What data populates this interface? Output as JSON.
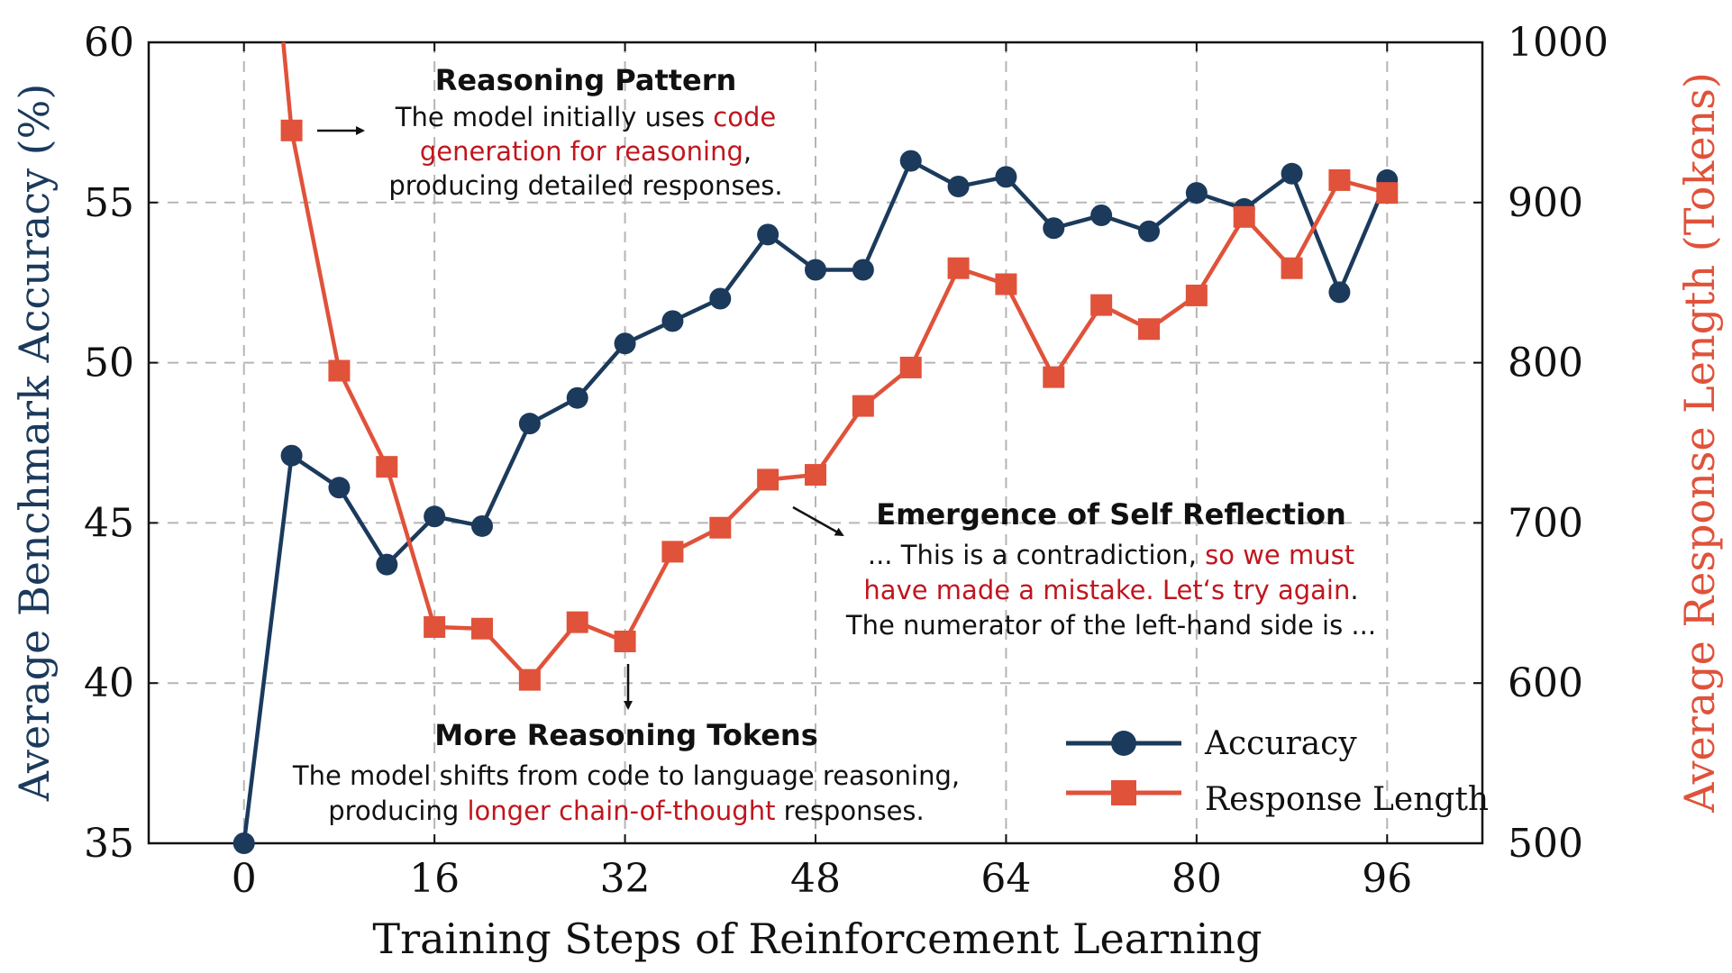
{
  "chart_data": {
    "type": "line",
    "x_ticks": [
      0,
      16,
      32,
      48,
      64,
      80,
      96
    ],
    "xlim": [
      -8,
      104
    ],
    "xlabel": "Training Steps of Reinforcement Learning",
    "y_left": {
      "label": "Average Benchmark Accuracy (%)",
      "range": [
        35,
        60
      ],
      "ticks": [
        35,
        40,
        45,
        50,
        55,
        60
      ],
      "color": "#1b3a5c"
    },
    "y_right": {
      "label": "Average Response Length (Tokens)",
      "range": [
        500,
        1000
      ],
      "ticks": [
        500,
        600,
        700,
        800,
        900,
        1000
      ],
      "color": "#e0523a"
    },
    "grid": true,
    "series": [
      {
        "name": "Accuracy",
        "axis": "left",
        "marker": "circle",
        "color": "#1b3a5c",
        "x": [
          0,
          4,
          8,
          12,
          16,
          20,
          24,
          28,
          32,
          36,
          40,
          44,
          48,
          52,
          56,
          60,
          64,
          68,
          72,
          76,
          80,
          84,
          88,
          92,
          96
        ],
        "values": [
          35.0,
          47.1,
          46.1,
          43.7,
          45.2,
          44.9,
          48.1,
          48.9,
          50.6,
          51.3,
          52.0,
          54.0,
          52.9,
          52.9,
          56.3,
          55.5,
          55.8,
          54.2,
          54.6,
          54.1,
          55.3,
          54.8,
          55.9,
          52.2,
          55.7
        ]
      },
      {
        "name": "Response Length",
        "axis": "right",
        "marker": "square",
        "color": "#e0523a",
        "x_start_partial": [
          3.3,
          1000
        ],
        "x": [
          4,
          8,
          12,
          16,
          20,
          24,
          28,
          32,
          36,
          40,
          44,
          48,
          52,
          56,
          60,
          64,
          68,
          72,
          76,
          80,
          84,
          88,
          92,
          96
        ],
        "values": [
          945,
          795,
          735,
          635,
          634,
          602,
          638,
          626,
          682,
          697,
          727,
          730,
          773,
          797,
          859,
          849,
          791,
          836,
          821,
          842,
          891,
          859,
          914,
          906
        ]
      }
    ],
    "legend": {
      "position": "bottom-right",
      "entries": [
        "Accuracy",
        "Response Length"
      ]
    },
    "annotations": [
      {
        "id": "reasoning-pattern",
        "title": "Reasoning Pattern",
        "lines": [
          [
            {
              "t": "The model initially uses "
            },
            {
              "t": "code",
              "red": true
            }
          ],
          [
            {
              "t": "generation for reasoning",
              "red": true
            },
            {
              "t": ","
            }
          ],
          [
            {
              "t": "producing detailed responses."
            }
          ]
        ]
      },
      {
        "id": "self-reflection",
        "title": "Emergence of Self Reflection",
        "lines": [
          [
            {
              "t": "... This is a contradiction, "
            },
            {
              "t": "so we must",
              "red": true
            }
          ],
          [
            {
              "t": "have made a mistake. Let‘s try again",
              "red": true
            },
            {
              "t": "."
            }
          ],
          [
            {
              "t": "The numerator of the left-hand side is ..."
            }
          ]
        ]
      },
      {
        "id": "more-tokens",
        "title": "More Reasoning Tokens",
        "lines": [
          [
            {
              "t": "The model shifts from code to language reasoning,"
            }
          ],
          [
            {
              "t": "producing "
            },
            {
              "t": "longer chain-of-thought",
              "red": true
            },
            {
              "t": " responses."
            }
          ]
        ]
      }
    ]
  }
}
